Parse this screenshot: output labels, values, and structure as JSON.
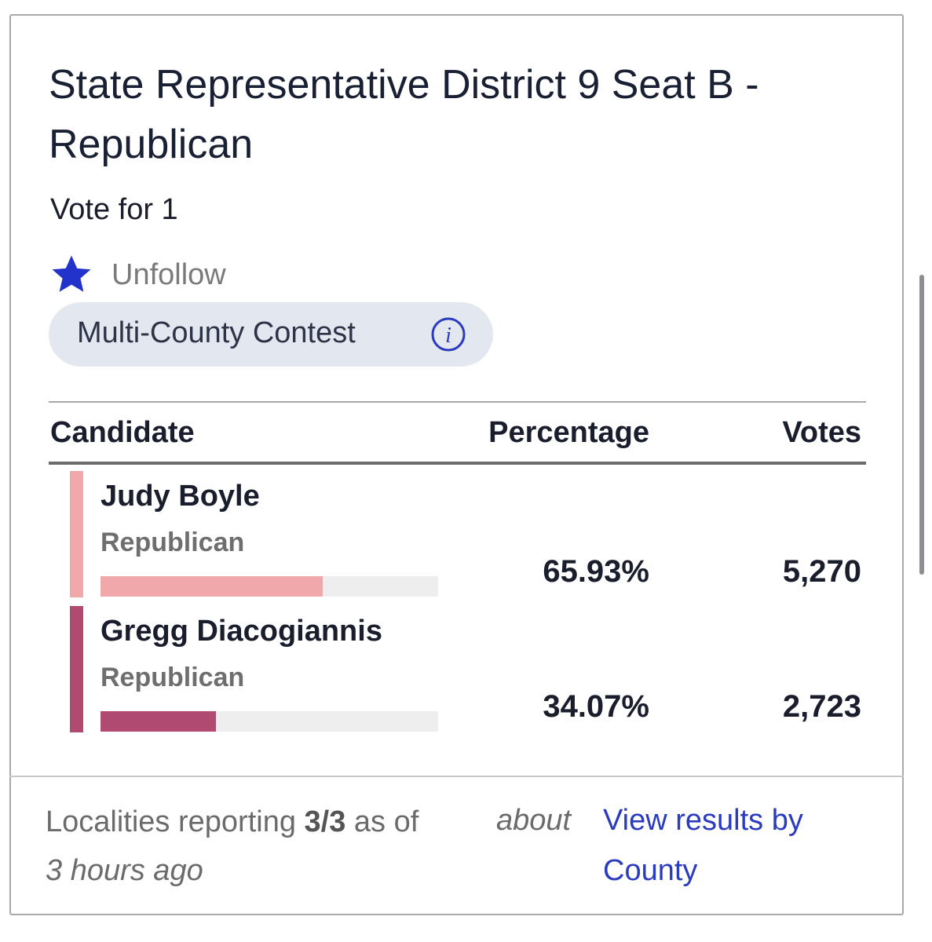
{
  "contest": {
    "title": "State Representative District 9 Seat B - Republican",
    "vote_for": "Vote for 1",
    "follow_button": "Unfollow",
    "badge": "Multi-County Contest"
  },
  "table": {
    "headers": [
      "Candidate",
      "Percentage",
      "Votes"
    ],
    "candidates": [
      {
        "name": "Judy Boyle",
        "party": "Republican",
        "color": "#f0a8aa",
        "percentage": {
          "value": 65.93,
          "label": "65.93%"
        },
        "votes": "5,270"
      },
      {
        "name": "Gregg Diacogiannis",
        "party": "Republican",
        "color": "#b04a70",
        "percentage": {
          "value": 34.07,
          "label": "34.07%"
        },
        "votes": "2,723"
      }
    ]
  },
  "footer": {
    "prefix": "Localities reporting",
    "reporting": "3/3",
    "as_of": "as of",
    "time": "about 3 hours ago",
    "link": "View results by County"
  }
}
